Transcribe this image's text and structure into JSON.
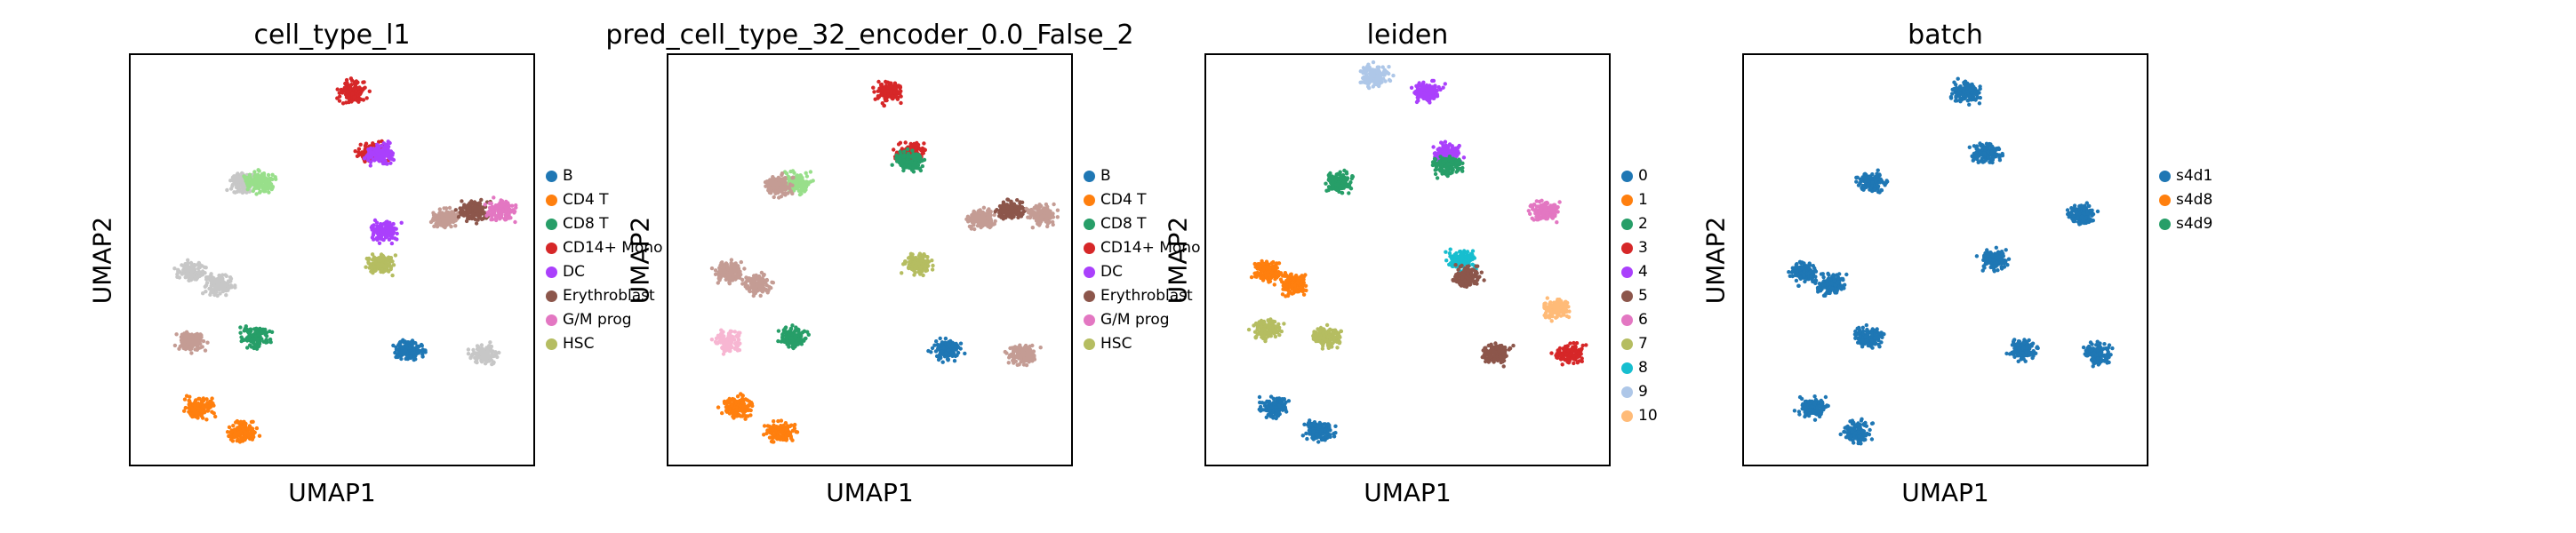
{
  "chart_data": [
    {
      "type": "scatter",
      "title": "cell_type_l1",
      "xlabel": "UMAP1",
      "ylabel": "UMAP2",
      "legend_placement": "right",
      "legend": [
        {
          "label": "B",
          "color": "#1f77b4"
        },
        {
          "label": "CD4 T",
          "color": "#ff7f0e"
        },
        {
          "label": "CD8 T",
          "color": "#279e68"
        },
        {
          "label": "CD14+ Mono",
          "color": "#d62728"
        },
        {
          "label": "DC",
          "color": "#aa40fc"
        },
        {
          "label": "Erythroblast",
          "color": "#8c564b"
        },
        {
          "label": "G/M prog",
          "color": "#e377c2"
        },
        {
          "label": "HSC",
          "color": "#b5bd61"
        }
      ],
      "clusters": [
        {
          "label": "CD14+ Mono",
          "color": "#d62728",
          "x": 0.55,
          "y": 0.91
        },
        {
          "label": "CD14+ Mono",
          "color": "#d62728",
          "x": 0.6,
          "y": 0.76
        },
        {
          "label": "DC",
          "color": "#aa40fc",
          "x": 0.62,
          "y": 0.76
        },
        {
          "label": "unlabeled",
          "color": "#c7c7c7",
          "x": 0.28,
          "y": 0.69
        },
        {
          "label": "unlabeled",
          "color": "#98df8a",
          "x": 0.32,
          "y": 0.69
        },
        {
          "label": "unlabeled",
          "color": "#c7c7c7",
          "x": 0.15,
          "y": 0.47
        },
        {
          "label": "unlabeled",
          "color": "#c7c7c7",
          "x": 0.22,
          "y": 0.44
        },
        {
          "label": "CD8 T",
          "color": "#279e68",
          "x": 0.31,
          "y": 0.31
        },
        {
          "label": "unlabeled",
          "color": "#c49c94",
          "x": 0.15,
          "y": 0.3
        },
        {
          "label": "CD4 T",
          "color": "#ff7f0e",
          "x": 0.17,
          "y": 0.14
        },
        {
          "label": "CD4 T",
          "color": "#ff7f0e",
          "x": 0.28,
          "y": 0.08
        },
        {
          "label": "HSC",
          "color": "#b5bd61",
          "x": 0.62,
          "y": 0.49
        },
        {
          "label": "DC",
          "color": "#aa40fc",
          "x": 0.63,
          "y": 0.57
        },
        {
          "label": "unlabeled",
          "color": "#c49c94",
          "x": 0.78,
          "y": 0.6
        },
        {
          "label": "Erythroblast",
          "color": "#8c564b",
          "x": 0.85,
          "y": 0.62
        },
        {
          "label": "G/M prog",
          "color": "#e377c2",
          "x": 0.92,
          "y": 0.62
        },
        {
          "label": "B",
          "color": "#1f77b4",
          "x": 0.69,
          "y": 0.28
        },
        {
          "label": "unlabeled",
          "color": "#c7c7c7",
          "x": 0.88,
          "y": 0.27
        }
      ]
    },
    {
      "type": "scatter",
      "title": "pred_cell_type_32_encoder_0.0_False_2",
      "xlabel": "UMAP1",
      "ylabel": "UMAP2",
      "legend_placement": "right",
      "legend": [
        {
          "label": "B",
          "color": "#1f77b4"
        },
        {
          "label": "CD4 T",
          "color": "#ff7f0e"
        },
        {
          "label": "CD8 T",
          "color": "#279e68"
        },
        {
          "label": "CD14+ Mono",
          "color": "#d62728"
        },
        {
          "label": "DC",
          "color": "#aa40fc"
        },
        {
          "label": "Erythroblast",
          "color": "#8c564b"
        },
        {
          "label": "G/M prog",
          "color": "#e377c2"
        },
        {
          "label": "HSC",
          "color": "#b5bd61"
        }
      ],
      "clusters": [
        {
          "label": "CD14+ Mono",
          "color": "#d62728",
          "x": 0.55,
          "y": 0.91
        },
        {
          "label": "CD14+ Mono",
          "color": "#d62728",
          "x": 0.6,
          "y": 0.76
        },
        {
          "label": "CD8 T",
          "color": "#279e68",
          "x": 0.6,
          "y": 0.74
        },
        {
          "label": "unlabeled",
          "color": "#98df8a",
          "x": 0.32,
          "y": 0.69
        },
        {
          "label": "unlabeled",
          "color": "#c49c94",
          "x": 0.27,
          "y": 0.68
        },
        {
          "label": "unlabeled",
          "color": "#c49c94",
          "x": 0.15,
          "y": 0.47
        },
        {
          "label": "unlabeled",
          "color": "#c49c94",
          "x": 0.22,
          "y": 0.44
        },
        {
          "label": "CD8 T",
          "color": "#279e68",
          "x": 0.31,
          "y": 0.31
        },
        {
          "label": "unlabeled",
          "color": "#f7b6d2",
          "x": 0.15,
          "y": 0.3
        },
        {
          "label": "CD4 T",
          "color": "#ff7f0e",
          "x": 0.17,
          "y": 0.14
        },
        {
          "label": "CD4 T",
          "color": "#ff7f0e",
          "x": 0.28,
          "y": 0.08
        },
        {
          "label": "HSC",
          "color": "#b5bd61",
          "x": 0.62,
          "y": 0.49
        },
        {
          "label": "unlabeled",
          "color": "#c49c94",
          "x": 0.78,
          "y": 0.6
        },
        {
          "label": "Erythroblast",
          "color": "#8c564b",
          "x": 0.85,
          "y": 0.62
        },
        {
          "label": "unlabeled",
          "color": "#c49c94",
          "x": 0.93,
          "y": 0.61
        },
        {
          "label": "B",
          "color": "#1f77b4",
          "x": 0.69,
          "y": 0.28
        },
        {
          "label": "unlabeled",
          "color": "#c49c94",
          "x": 0.88,
          "y": 0.27
        }
      ]
    },
    {
      "type": "scatter",
      "title": "leiden",
      "xlabel": "UMAP1",
      "ylabel": "UMAP2",
      "legend_placement": "right",
      "legend": [
        {
          "label": "0",
          "color": "#1f77b4"
        },
        {
          "label": "1",
          "color": "#ff7f0e"
        },
        {
          "label": "2",
          "color": "#279e68"
        },
        {
          "label": "3",
          "color": "#d62728"
        },
        {
          "label": "4",
          "color": "#aa40fc"
        },
        {
          "label": "5",
          "color": "#8c564b"
        },
        {
          "label": "6",
          "color": "#e377c2"
        },
        {
          "label": "7",
          "color": "#b5bd61"
        },
        {
          "label": "8",
          "color": "#17becf"
        },
        {
          "label": "9",
          "color": "#aec7e8"
        },
        {
          "label": "10",
          "color": "#ffbb78"
        }
      ],
      "clusters": [
        {
          "label": "4",
          "color": "#aa40fc",
          "x": 0.55,
          "y": 0.91
        },
        {
          "label": "4",
          "color": "#aa40fc",
          "x": 0.6,
          "y": 0.76
        },
        {
          "label": "9",
          "color": "#aec7e8",
          "x": 0.42,
          "y": 0.95
        },
        {
          "label": "2",
          "color": "#279e68",
          "x": 0.33,
          "y": 0.69
        },
        {
          "label": "2",
          "color": "#279e68",
          "x": 0.6,
          "y": 0.73
        },
        {
          "label": "1",
          "color": "#ff7f0e",
          "x": 0.15,
          "y": 0.47
        },
        {
          "label": "1",
          "color": "#ff7f0e",
          "x": 0.22,
          "y": 0.44
        },
        {
          "label": "7",
          "color": "#b5bd61",
          "x": 0.15,
          "y": 0.33
        },
        {
          "label": "7",
          "color": "#b5bd61",
          "x": 0.3,
          "y": 0.31
        },
        {
          "label": "0",
          "color": "#1f77b4",
          "x": 0.17,
          "y": 0.14
        },
        {
          "label": "0",
          "color": "#1f77b4",
          "x": 0.28,
          "y": 0.08
        },
        {
          "label": "8",
          "color": "#17becf",
          "x": 0.63,
          "y": 0.5
        },
        {
          "label": "5",
          "color": "#8c564b",
          "x": 0.65,
          "y": 0.46
        },
        {
          "label": "6",
          "color": "#e377c2",
          "x": 0.84,
          "y": 0.62
        },
        {
          "label": "10",
          "color": "#ffbb78",
          "x": 0.87,
          "y": 0.38
        },
        {
          "label": "5",
          "color": "#8c564b",
          "x": 0.72,
          "y": 0.27
        },
        {
          "label": "3",
          "color": "#d62728",
          "x": 0.9,
          "y": 0.27
        }
      ]
    },
    {
      "type": "scatter",
      "title": "batch",
      "xlabel": "UMAP1",
      "ylabel": "UMAP2",
      "legend_placement": "right",
      "legend": [
        {
          "label": "s4d1",
          "color": "#1f77b4"
        },
        {
          "label": "s4d8",
          "color": "#ff7f0e"
        },
        {
          "label": "s4d9",
          "color": "#279e68"
        }
      ],
      "clusters": [
        {
          "label": "s4d1",
          "color": "#1f77b4",
          "x": 0.55,
          "y": 0.91
        },
        {
          "label": "s4d1",
          "color": "#1f77b4",
          "x": 0.6,
          "y": 0.76
        },
        {
          "label": "s4d1",
          "color": "#1f77b4",
          "x": 0.32,
          "y": 0.69
        },
        {
          "label": "s4d1",
          "color": "#1f77b4",
          "x": 0.15,
          "y": 0.47
        },
        {
          "label": "s4d1",
          "color": "#1f77b4",
          "x": 0.22,
          "y": 0.44
        },
        {
          "label": "s4d1",
          "color": "#1f77b4",
          "x": 0.31,
          "y": 0.31
        },
        {
          "label": "s4d1",
          "color": "#1f77b4",
          "x": 0.17,
          "y": 0.14
        },
        {
          "label": "s4d1",
          "color": "#1f77b4",
          "x": 0.28,
          "y": 0.08
        },
        {
          "label": "s4d1",
          "color": "#1f77b4",
          "x": 0.62,
          "y": 0.5
        },
        {
          "label": "s4d1",
          "color": "#1f77b4",
          "x": 0.84,
          "y": 0.61
        },
        {
          "label": "s4d1",
          "color": "#1f77b4",
          "x": 0.69,
          "y": 0.28
        },
        {
          "label": "s4d1",
          "color": "#1f77b4",
          "x": 0.88,
          "y": 0.27
        }
      ]
    }
  ]
}
